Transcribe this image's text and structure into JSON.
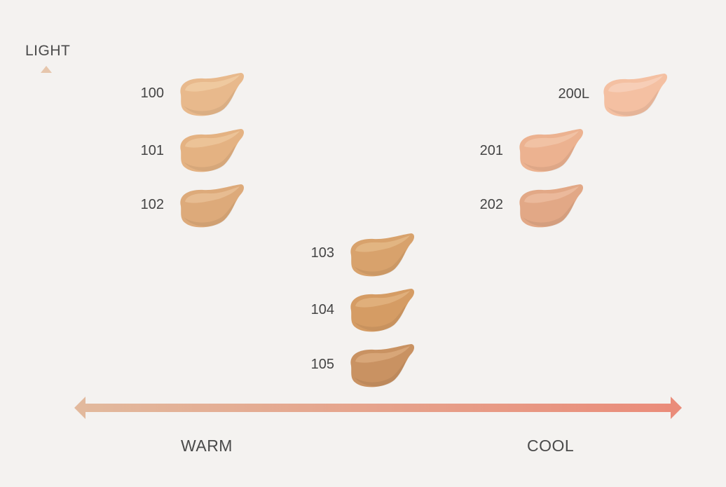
{
  "axes": {
    "vertical_label": "LIGHT",
    "left_label": "WARM",
    "right_label": "COOL",
    "vertical_gradient": [
      "#e6c6ac",
      "#a86a50"
    ],
    "horizontal_gradient": [
      "#e2b99d",
      "#ea8c7a"
    ]
  },
  "shades": [
    {
      "id": "100",
      "color": "#e8b98c",
      "highlight": "#f2cfa6"
    },
    {
      "id": "101",
      "color": "#e4b282",
      "highlight": "#efc89d"
    },
    {
      "id": "102",
      "color": "#ddaa7a",
      "highlight": "#eac199"
    },
    {
      "id": "103",
      "color": "#d8a26c",
      "highlight": "#e6bb8a"
    },
    {
      "id": "104",
      "color": "#d59c64",
      "highlight": "#e3b583"
    },
    {
      "id": "105",
      "color": "#c99262",
      "highlight": "#dcac80"
    },
    {
      "id": "200L",
      "color": "#f4c0a2",
      "highlight": "#f8d3bd"
    },
    {
      "id": "201",
      "color": "#ecb290",
      "highlight": "#f3c7ab"
    },
    {
      "id": "202",
      "color": "#e2a886",
      "highlight": "#edbfa2"
    }
  ]
}
